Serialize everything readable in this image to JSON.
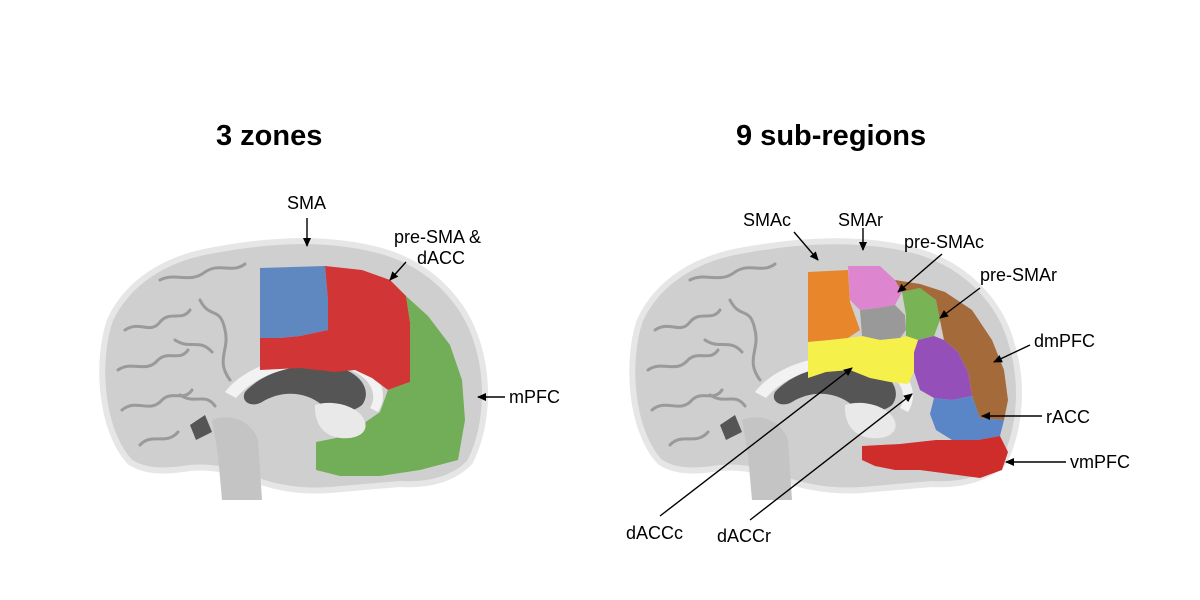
{
  "panels": [
    {
      "title": "3 zones",
      "regions": [
        {
          "label": "SMA",
          "color": "#5f88c0"
        },
        {
          "label": "pre-SMA &",
          "label2": "dACC",
          "color": "#d23535"
        },
        {
          "label": "mPFC",
          "color": "#72ad58"
        }
      ]
    },
    {
      "title": "9 sub-regions",
      "regions": [
        {
          "label": "SMAc",
          "color": "#e8862c"
        },
        {
          "label": "SMAr",
          "color": "#dd86cf"
        },
        {
          "label": "pre-SMAc",
          "color": "#999999"
        },
        {
          "label": "pre-SMAr",
          "color": "#78b356"
        },
        {
          "label": "dmPFC",
          "color": "#a56a3a"
        },
        {
          "label": "rACC",
          "color": "#5a85c6"
        },
        {
          "label": "vmPFC",
          "color": "#cf2c2c"
        },
        {
          "label": "dACCc",
          "color": "#f6f04a"
        },
        {
          "label": "dACCr",
          "color": "#9450b8"
        }
      ]
    }
  ]
}
